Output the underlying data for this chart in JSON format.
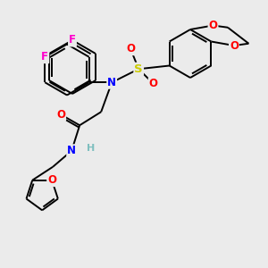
{
  "bg_color": "#ebebeb",
  "bond_color": "#000000",
  "bond_width": 1.4,
  "atom_colors": {
    "F": "#ff00cc",
    "N": "#0000ff",
    "S": "#cccc00",
    "O": "#ff0000",
    "H": "#7fbfbf",
    "C": "#000000"
  },
  "font_size_atom": 8.5
}
